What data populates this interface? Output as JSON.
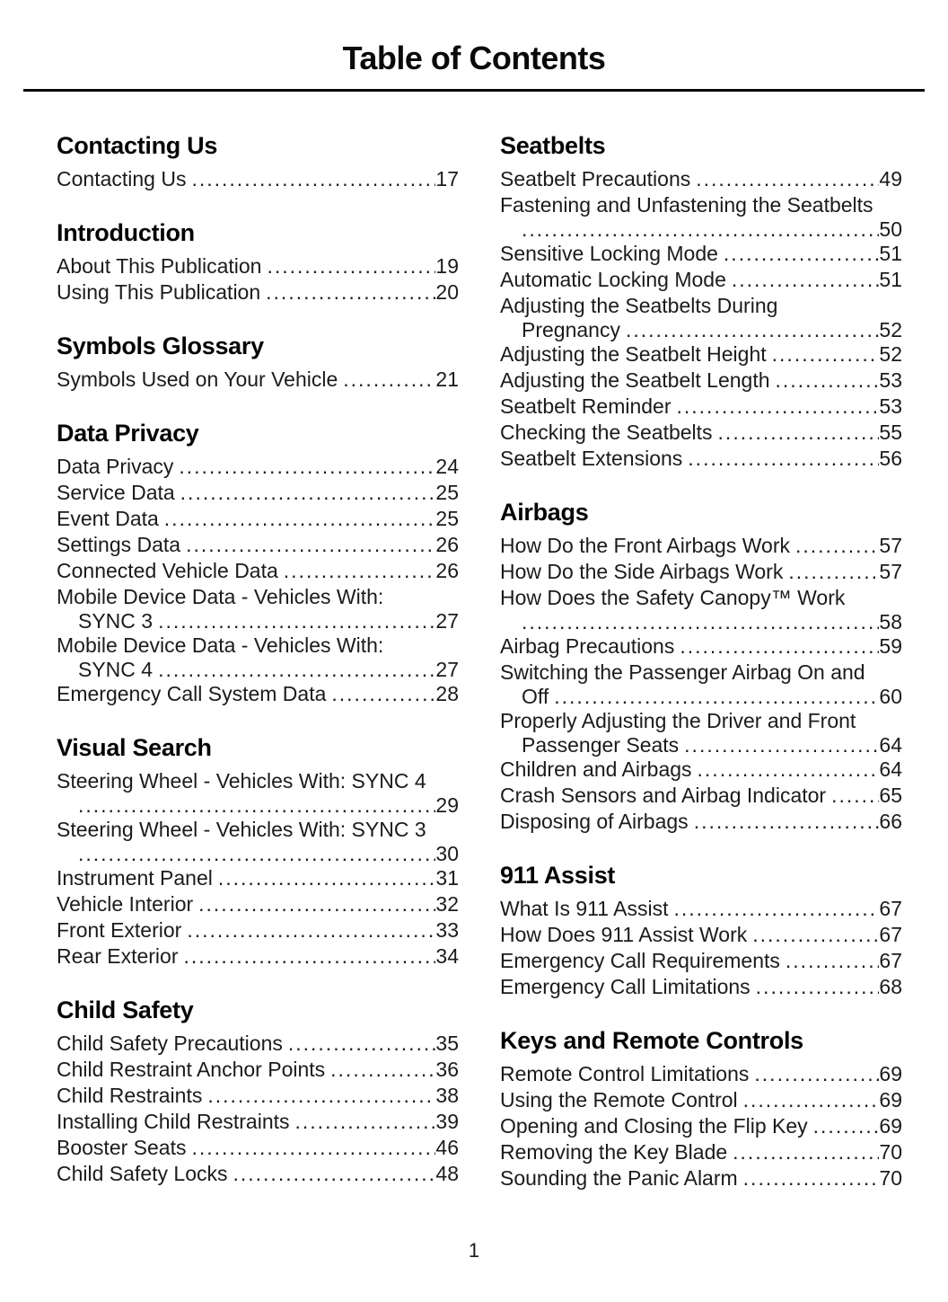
{
  "title": "Table of Contents",
  "footer": {
    "page_number": "1"
  },
  "columns": [
    {
      "sections": [
        {
          "heading": "Contacting Us",
          "entries": [
            {
              "label": "Contacting Us",
              "page": "17"
            }
          ]
        },
        {
          "heading": "Introduction",
          "entries": [
            {
              "label": "About This Publication",
              "page": "19"
            },
            {
              "label": "Using This Publication",
              "page": "20"
            }
          ]
        },
        {
          "heading": "Symbols Glossary",
          "entries": [
            {
              "label": "Symbols Used on Your Vehicle",
              "page": "21"
            }
          ]
        },
        {
          "heading": "Data Privacy",
          "entries": [
            {
              "label": "Data Privacy",
              "page": "24"
            },
            {
              "label": "Service Data",
              "page": "25"
            },
            {
              "label": "Event Data",
              "page": "25"
            },
            {
              "label": "Settings Data",
              "page": "26"
            },
            {
              "label": "Connected Vehicle Data",
              "page": "26"
            },
            {
              "label": "Mobile Device Data - Vehicles With:",
              "label2": "SYNC 3",
              "page": "27",
              "wrap": true
            },
            {
              "label": "Mobile Device Data - Vehicles With:",
              "label2": "SYNC 4",
              "page": "27",
              "wrap": true
            },
            {
              "label": "Emergency Call System Data",
              "page": "28"
            }
          ]
        },
        {
          "heading": "Visual Search",
          "entries": [
            {
              "label": "Steering Wheel - Vehicles With: SYNC 4",
              "label2": "",
              "page": "29",
              "wrap": true
            },
            {
              "label": "Steering Wheel - Vehicles With: SYNC 3",
              "label2": "",
              "page": "30",
              "wrap": true
            },
            {
              "label": "Instrument Panel",
              "page": "31"
            },
            {
              "label": "Vehicle Interior",
              "page": "32"
            },
            {
              "label": "Front Exterior",
              "page": "33"
            },
            {
              "label": "Rear Exterior",
              "page": "34"
            }
          ]
        },
        {
          "heading": "Child Safety",
          "entries": [
            {
              "label": "Child Safety Precautions",
              "page": "35"
            },
            {
              "label": "Child Restraint Anchor Points",
              "page": "36"
            },
            {
              "label": "Child Restraints",
              "page": "38"
            },
            {
              "label": "Installing Child Restraints",
              "page": "39"
            },
            {
              "label": "Booster Seats",
              "page": "46"
            },
            {
              "label": "Child Safety Locks",
              "page": "48"
            }
          ]
        }
      ]
    },
    {
      "sections": [
        {
          "heading": "Seatbelts",
          "entries": [
            {
              "label": "Seatbelt Precautions",
              "page": "49"
            },
            {
              "label": "Fastening and Unfastening the Seatbelts",
              "label2": "",
              "page": "50",
              "wrap": true
            },
            {
              "label": "Sensitive Locking Mode",
              "page": "51"
            },
            {
              "label": "Automatic Locking Mode",
              "page": "51"
            },
            {
              "label": "Adjusting the Seatbelts During",
              "label2": "Pregnancy",
              "page": "52",
              "wrap": true
            },
            {
              "label": "Adjusting the Seatbelt Height",
              "page": "52"
            },
            {
              "label": "Adjusting the Seatbelt Length",
              "page": "53"
            },
            {
              "label": "Seatbelt Reminder",
              "page": "53"
            },
            {
              "label": "Checking the Seatbelts",
              "page": "55"
            },
            {
              "label": "Seatbelt Extensions",
              "page": "56"
            }
          ]
        },
        {
          "heading": "Airbags",
          "entries": [
            {
              "label": "How Do the Front Airbags Work",
              "page": "57"
            },
            {
              "label": "How Do the Side Airbags Work",
              "page": "57"
            },
            {
              "label": "How Does the Safety Canopy™ Work",
              "label2": "",
              "page": "58",
              "wrap": true
            },
            {
              "label": "Airbag Precautions",
              "page": "59"
            },
            {
              "label": "Switching the Passenger Airbag On and",
              "label2": "Off",
              "page": "60",
              "wrap": true
            },
            {
              "label": "Properly Adjusting the Driver and Front",
              "label2": "Passenger Seats",
              "page": "64",
              "wrap": true
            },
            {
              "label": "Children and Airbags",
              "page": "64"
            },
            {
              "label": "Crash Sensors and Airbag Indicator",
              "page": "65"
            },
            {
              "label": "Disposing of Airbags",
              "page": "66"
            }
          ]
        },
        {
          "heading": "911 Assist",
          "entries": [
            {
              "label": "What Is 911 Assist",
              "page": "67"
            },
            {
              "label": "How Does 911 Assist Work",
              "page": "67"
            },
            {
              "label": "Emergency Call Requirements",
              "page": "67"
            },
            {
              "label": "Emergency Call Limitations",
              "page": "68"
            }
          ]
        },
        {
          "heading": "Keys and Remote Controls",
          "entries": [
            {
              "label": "Remote Control Limitations",
              "page": "69"
            },
            {
              "label": "Using the Remote Control",
              "page": "69"
            },
            {
              "label": "Opening and Closing the Flip Key",
              "page": "69"
            },
            {
              "label": "Removing the Key Blade",
              "page": "70"
            },
            {
              "label": "Sounding the Panic Alarm",
              "page": "70"
            }
          ]
        }
      ]
    }
  ]
}
